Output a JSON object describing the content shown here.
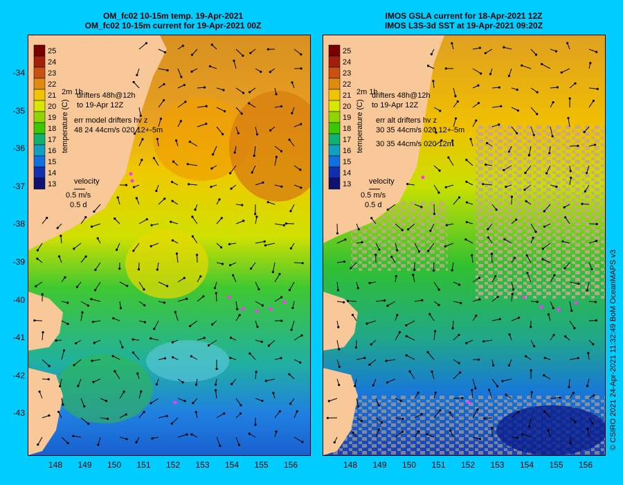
{
  "left_panel": {
    "title_line1": "OM_fc02 10-15m temp. 19-Apr-2021",
    "title_line2": "OM_fc02 10-15m current for 19-Apr-2021 00Z",
    "legend": {
      "drifters_line1": "drifters 48h@12h",
      "drifters_line2": "to 19-Apr 12Z",
      "err_line1": "err model drifters hv z",
      "err_line2": "48 24 44cm/s 020 12+-5m",
      "velocity_label": "velocity",
      "speed_label": "0.5 m/s",
      "time_label": "0.5 d",
      "colorbar_title": "temperature (C)",
      "left_units": "2m 1h"
    }
  },
  "right_panel": {
    "title_line1": "IMOS GSLA current for 18-Apr-2021 12Z",
    "title_line2": "IMOS L3S-3d SST at 19-Apr-2021 09:20Z",
    "legend": {
      "drifters_line1": "drifters 48h@12h",
      "drifters_line2": "to 19-Apr 12Z",
      "err_line1": "err alt drifters hv z",
      "err_line2": "30 35 44cm/s 020 12+-5m",
      "err_line3": "30 35 44cm/s 020 12m",
      "velocity_label": "velocity",
      "speed_label": "0.5 m/s",
      "time_label": "0.5 d",
      "colorbar_title": "temperature (C)",
      "left_units": "2m 1h"
    }
  },
  "colorbar": {
    "ticks": [
      "25",
      "24",
      "23",
      "22",
      "21",
      "20",
      "19",
      "18",
      "17",
      "16",
      "15",
      "14",
      "13"
    ],
    "colors": [
      "#7a0000",
      "#a0200a",
      "#c85010",
      "#e08a10",
      "#f0c400",
      "#d6e600",
      "#8fd600",
      "#3cc800",
      "#10b070",
      "#10a0c0",
      "#1070e0",
      "#1030b0",
      "#101070"
    ]
  },
  "x_axis_ticks": [
    "148",
    "149",
    "150",
    "151",
    "152",
    "153",
    "154",
    "155",
    "156"
  ],
  "y_axis_ticks": [
    "-34",
    "-35",
    "-36",
    "-37",
    "-38",
    "-39",
    "-40",
    "-41",
    "-42",
    "-43"
  ],
  "credit": "© CSIRO 2021   24-Apr-2021 11:32:49 BoM OceanMAPS v3",
  "colors": {
    "land": "#f8c898",
    "frame_bg": "#00ccff",
    "drifter": "#ff33ff",
    "cloud": "#c4a88c"
  }
}
